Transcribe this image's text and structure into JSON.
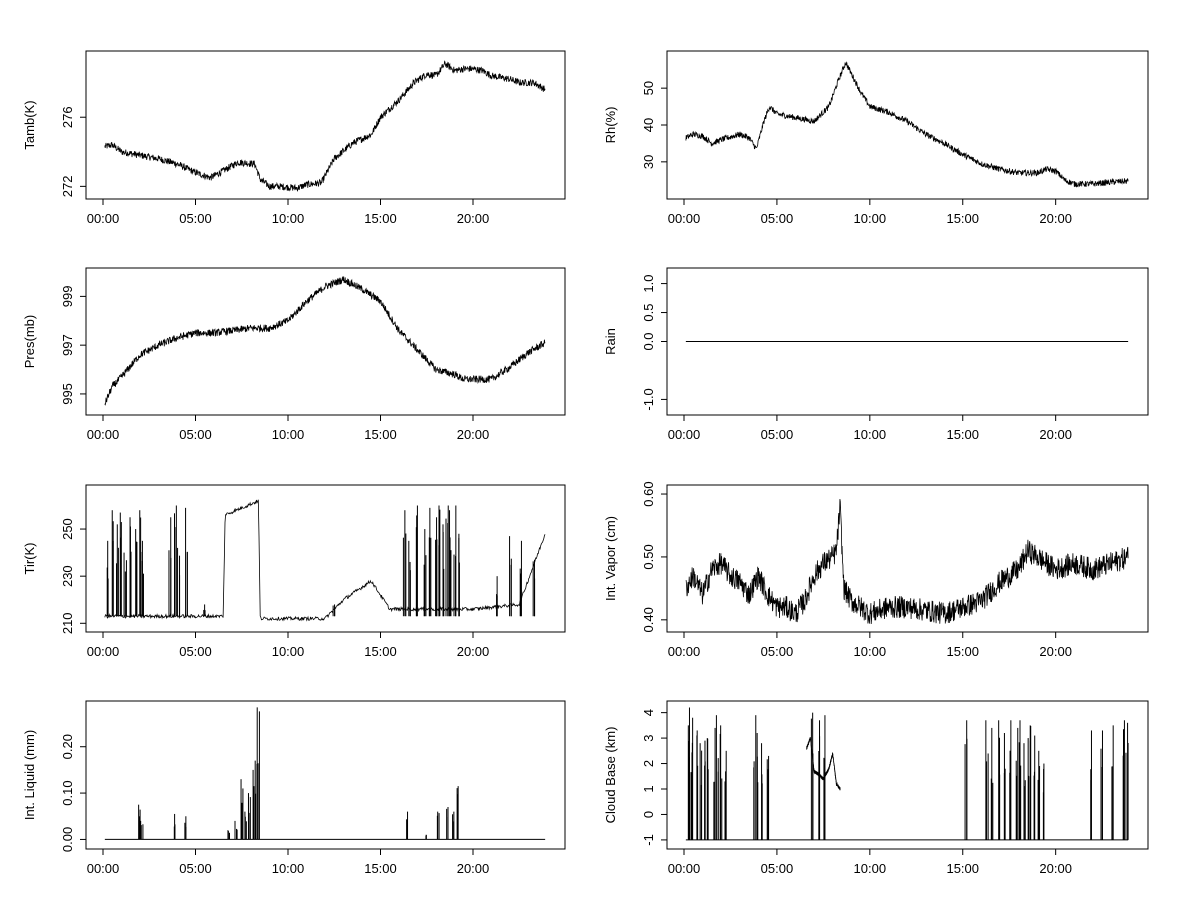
{
  "x_ticks": [
    "00:00",
    "05:00",
    "10:00",
    "15:00",
    "20:00"
  ],
  "chart_data": [
    {
      "type": "line",
      "ylabel": "Tamb(K)",
      "x_unit": "hours",
      "xlim": [
        0,
        24
      ],
      "ylim": [
        271.5,
        279.6
      ],
      "y_ticks": [
        272,
        276
      ],
      "style": "noisy",
      "series": [
        {
          "x": [
            0.1,
            0.5,
            1,
            2,
            3,
            4,
            5,
            5.8,
            6.5,
            7.3,
            8.2,
            8.5,
            9,
            9.5,
            10.5,
            11,
            11.8,
            12.5,
            13.5,
            14.5,
            15,
            16,
            16.8,
            17.5,
            18,
            18.5,
            19,
            19.5,
            20,
            20.5,
            21,
            22,
            22.5,
            23.3,
            23.9
          ],
          "y": [
            274.3,
            274.4,
            274.0,
            273.8,
            273.6,
            273.3,
            272.8,
            272.5,
            272.9,
            273.4,
            273.3,
            272.4,
            272.0,
            272.0,
            271.9,
            272.1,
            272.2,
            273.6,
            274.5,
            275.0,
            276.0,
            277.0,
            278.0,
            278.5,
            278.4,
            279.1,
            278.7,
            278.8,
            278.8,
            278.7,
            278.4,
            278.2,
            278.0,
            278.0,
            277.6
          ],
          "noise": 0.2
        }
      ]
    },
    {
      "type": "line",
      "ylabel": "Rh(%)",
      "x_unit": "hours",
      "xlim": [
        0,
        24
      ],
      "ylim": [
        21,
        59
      ],
      "y_ticks": [
        30,
        40,
        50
      ],
      "style": "noisy",
      "series": [
        {
          "x": [
            0.1,
            0.5,
            1,
            1.5,
            2,
            3,
            3.5,
            3.9,
            4.3,
            4.6,
            5,
            6,
            7,
            7.8,
            8.3,
            8.7,
            9,
            9.5,
            10,
            11,
            12,
            13,
            14,
            15,
            16,
            17,
            18,
            19,
            19.5,
            20,
            20.5,
            21,
            22,
            23,
            23.9
          ],
          "y": [
            36.5,
            37.5,
            37.0,
            35.0,
            36.0,
            37.5,
            36.5,
            33.5,
            41.0,
            45.0,
            43.0,
            42.0,
            41.0,
            45.0,
            52.0,
            57.0,
            54.0,
            49.0,
            45.0,
            43.5,
            41.0,
            37.5,
            35.0,
            32.0,
            29.5,
            28.0,
            27.0,
            27.0,
            28.0,
            27.5,
            25.0,
            24.0,
            24.0,
            24.5,
            24.8
          ],
          "noise": 0.8
        }
      ]
    },
    {
      "type": "line",
      "ylabel": "Pres(mb)",
      "x_unit": "hours",
      "xlim": [
        0,
        24
      ],
      "ylim": [
        994.3,
        1000.0
      ],
      "y_ticks": [
        995,
        997,
        999
      ],
      "style": "noisy",
      "series": [
        {
          "x": [
            0.1,
            0.5,
            1,
            2,
            3,
            4,
            5,
            6,
            7,
            8,
            9,
            10,
            11,
            12,
            13,
            14,
            15,
            16,
            17,
            18,
            19,
            19.5,
            20,
            21,
            22,
            23,
            23.9
          ],
          "y": [
            994.6,
            995.3,
            995.7,
            996.6,
            997.0,
            997.3,
            997.5,
            997.5,
            997.6,
            997.7,
            997.7,
            998.0,
            998.8,
            999.4,
            999.7,
            999.3,
            998.8,
            997.6,
            996.8,
            996.0,
            995.8,
            995.6,
            995.6,
            995.6,
            996.1,
            996.7,
            997.1
          ],
          "noise": 0.15
        }
      ]
    },
    {
      "type": "line",
      "ylabel": "Rain",
      "x_unit": "hours",
      "xlim": [
        0,
        24
      ],
      "ylim": [
        -1.2,
        1.2
      ],
      "y_ticks": [
        -1.0,
        0.0,
        0.5,
        1.0
      ],
      "y_tick_labels": [
        "-1.0",
        "0.0",
        "0.5",
        "1.0"
      ],
      "style": "line",
      "series": [
        {
          "x": [
            0.1,
            23.9
          ],
          "y": [
            0,
            0
          ]
        }
      ]
    },
    {
      "type": "line",
      "ylabel": "Tir(K)",
      "x_unit": "hours",
      "xlim": [
        0,
        24
      ],
      "ylim": [
        208,
        267
      ],
      "y_ticks": [
        210,
        230,
        250
      ],
      "style": "spiky",
      "baseline": 213,
      "series": [
        {
          "x": [
            0.1,
            6.5,
            6.6,
            8.4,
            8.5,
            12,
            13,
            14.5,
            15.5,
            17,
            20,
            22.5,
            23.9
          ],
          "y": [
            213,
            213,
            256,
            262,
            212,
            212,
            220,
            228,
            216,
            216,
            216,
            218,
            248
          ]
        }
      ],
      "spikes": [
        {
          "x": 0.3,
          "y": 245
        },
        {
          "x": 0.5,
          "y": 258
        },
        {
          "x": 0.8,
          "y": 252
        },
        {
          "x": 1.0,
          "y": 257
        },
        {
          "x": 1.2,
          "y": 240
        },
        {
          "x": 1.5,
          "y": 255
        },
        {
          "x": 1.8,
          "y": 250
        },
        {
          "x": 2.0,
          "y": 258
        },
        {
          "x": 2.2,
          "y": 245
        },
        {
          "x": 3.6,
          "y": 255
        },
        {
          "x": 3.9,
          "y": 260
        },
        {
          "x": 4.1,
          "y": 242
        },
        {
          "x": 4.5,
          "y": 259
        },
        {
          "x": 5.5,
          "y": 218
        },
        {
          "x": 12.5,
          "y": 218
        },
        {
          "x": 16.3,
          "y": 258
        },
        {
          "x": 16.6,
          "y": 245
        },
        {
          "x": 17.0,
          "y": 260
        },
        {
          "x": 17.4,
          "y": 250
        },
        {
          "x": 17.7,
          "y": 259
        },
        {
          "x": 18.0,
          "y": 255
        },
        {
          "x": 18.2,
          "y": 260
        },
        {
          "x": 18.4,
          "y": 252
        },
        {
          "x": 18.6,
          "y": 260
        },
        {
          "x": 18.8,
          "y": 258
        },
        {
          "x": 19.0,
          "y": 260
        },
        {
          "x": 19.2,
          "y": 248
        },
        {
          "x": 21.3,
          "y": 230
        },
        {
          "x": 22.0,
          "y": 247
        },
        {
          "x": 22.6,
          "y": 245
        },
        {
          "x": 23.3,
          "y": 237
        }
      ]
    },
    {
      "type": "line",
      "ylabel": "Int. Vapor (cm)",
      "x_unit": "hours",
      "xlim": [
        0,
        24
      ],
      "ylim": [
        0.387,
        0.608
      ],
      "y_ticks": [
        0.4,
        0.5,
        0.6
      ],
      "y_tick_labels": [
        "0.40",
        "0.50",
        "0.60"
      ],
      "style": "noisy",
      "series": [
        {
          "x": [
            0.1,
            0.5,
            1,
            1.5,
            2,
            2.5,
            3,
            3.5,
            4,
            4.5,
            5,
            5.5,
            6,
            6.5,
            7,
            7.5,
            8,
            8.2,
            8.4,
            8.6,
            9,
            10,
            11,
            12,
            13,
            14,
            15,
            16,
            17,
            18,
            18.5,
            19,
            20,
            21,
            22,
            23,
            23.9
          ],
          "y": [
            0.45,
            0.47,
            0.44,
            0.48,
            0.49,
            0.47,
            0.46,
            0.44,
            0.47,
            0.44,
            0.42,
            0.42,
            0.41,
            0.43,
            0.47,
            0.49,
            0.5,
            0.51,
            0.58,
            0.45,
            0.43,
            0.41,
            0.42,
            0.42,
            0.415,
            0.41,
            0.42,
            0.43,
            0.46,
            0.48,
            0.51,
            0.5,
            0.48,
            0.49,
            0.48,
            0.49,
            0.5
          ],
          "noise": 0.018
        }
      ]
    },
    {
      "type": "line",
      "ylabel": "Int. Liquid (mm)",
      "x_unit": "hours",
      "xlim": [
        0,
        24
      ],
      "ylim": [
        -0.012,
        0.29
      ],
      "y_ticks": [
        0.0,
        0.1,
        0.2
      ],
      "y_tick_labels": [
        "0.00",
        "0.10",
        "0.20"
      ],
      "style": "spiky",
      "baseline": 0,
      "series": [
        {
          "x": [
            0.1,
            23.9
          ],
          "y": [
            0,
            0
          ]
        }
      ],
      "spikes": [
        {
          "x": 2.0,
          "y": 0.075
        },
        {
          "x": 2.1,
          "y": 0.04
        },
        {
          "x": 3.9,
          "y": 0.055
        },
        {
          "x": 4.5,
          "y": 0.05
        },
        {
          "x": 6.8,
          "y": 0.02
        },
        {
          "x": 7.2,
          "y": 0.04
        },
        {
          "x": 7.5,
          "y": 0.13
        },
        {
          "x": 7.7,
          "y": 0.06
        },
        {
          "x": 7.9,
          "y": 0.1
        },
        {
          "x": 8.1,
          "y": 0.15
        },
        {
          "x": 8.25,
          "y": 0.17
        },
        {
          "x": 8.4,
          "y": 0.285
        },
        {
          "x": 16.4,
          "y": 0.06
        },
        {
          "x": 17.5,
          "y": 0.01
        },
        {
          "x": 18.1,
          "y": 0.06
        },
        {
          "x": 18.6,
          "y": 0.07
        },
        {
          "x": 18.9,
          "y": 0.06
        },
        {
          "x": 19.2,
          "y": 0.115
        }
      ]
    },
    {
      "type": "line",
      "ylabel": "Cloud Base (km)",
      "x_unit": "hours",
      "xlim": [
        0,
        24
      ],
      "ylim": [
        -1.2,
        4.3
      ],
      "y_ticks": [
        -1,
        0,
        1,
        2,
        3,
        4
      ],
      "style": "spiky",
      "baseline": -1,
      "series": [
        {
          "x": [
            6.6,
            6.8,
            7.0,
            7.2,
            7.5,
            7.8,
            8.0,
            8.2,
            8.4
          ],
          "y": [
            2.6,
            3.0,
            1.7,
            1.6,
            1.4,
            1.8,
            2.4,
            1.2,
            1.0
          ]
        }
      ],
      "spikes": [
        {
          "x": 0.2,
          "y": 3.5
        },
        {
          "x": 0.35,
          "y": 4.2
        },
        {
          "x": 0.5,
          "y": 3.8
        },
        {
          "x": 0.7,
          "y": 3.3
        },
        {
          "x": 0.9,
          "y": 2.8
        },
        {
          "x": 1.1,
          "y": 2.9
        },
        {
          "x": 1.3,
          "y": 3.0
        },
        {
          "x": 1.6,
          "y": 3.4
        },
        {
          "x": 1.8,
          "y": 3.9
        },
        {
          "x": 2.0,
          "y": 3.5
        },
        {
          "x": 2.2,
          "y": 2.5
        },
        {
          "x": 3.8,
          "y": 3.9
        },
        {
          "x": 4.0,
          "y": 3.2
        },
        {
          "x": 4.2,
          "y": 2.8
        },
        {
          "x": 4.5,
          "y": 2.3
        },
        {
          "x": 6.9,
          "y": 4.0
        },
        {
          "x": 7.3,
          "y": 3.7
        },
        {
          "x": 7.6,
          "y": 3.9
        },
        {
          "x": 15.2,
          "y": 3.7
        },
        {
          "x": 16.3,
          "y": 3.7
        },
        {
          "x": 16.6,
          "y": 3.4
        },
        {
          "x": 17.0,
          "y": 3.7
        },
        {
          "x": 17.3,
          "y": 3.2
        },
        {
          "x": 17.6,
          "y": 3.7
        },
        {
          "x": 17.9,
          "y": 3.4
        },
        {
          "x": 18.1,
          "y": 3.7
        },
        {
          "x": 18.3,
          "y": 2.8
        },
        {
          "x": 18.5,
          "y": 3.0
        },
        {
          "x": 18.7,
          "y": 3.5
        },
        {
          "x": 18.9,
          "y": 3.1
        },
        {
          "x": 19.1,
          "y": 2.5
        },
        {
          "x": 19.3,
          "y": 2.0
        },
        {
          "x": 21.9,
          "y": 3.3
        },
        {
          "x": 22.5,
          "y": 3.3
        },
        {
          "x": 23.1,
          "y": 3.5
        },
        {
          "x": 23.7,
          "y": 3.7
        },
        {
          "x": 23.85,
          "y": 3.6
        }
      ]
    }
  ]
}
